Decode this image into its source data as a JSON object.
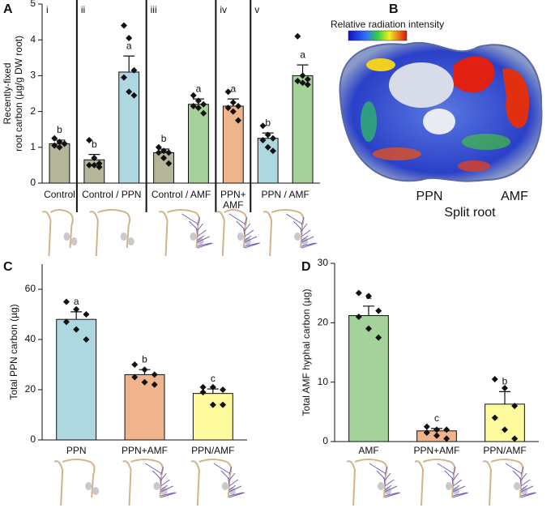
{
  "chart_data": [
    {
      "type": "bar",
      "panel": "A",
      "ylabel": [
        "Recently-fixed",
        "root carbon (µg/g DW root)"
      ],
      "ylim": [
        0,
        5
      ],
      "yticks": [
        0,
        1,
        2,
        3,
        4,
        5
      ],
      "group_dividers": true,
      "groups": [
        {
          "numeral": "i",
          "label": "Control",
          "values": [
            1.1
          ],
          "errors": [
            0.1
          ],
          "colors": [
            "#b5b699"
          ],
          "letters": [
            "b"
          ],
          "points": [
            [
              1.25,
              1.15,
              1.1,
              1.05,
              1.0,
              1.1
            ]
          ]
        },
        {
          "numeral": "ii",
          "label": "Control / PPN",
          "values": [
            0.65,
            3.1
          ],
          "errors": [
            0.15,
            0.45
          ],
          "colors": [
            "#b5b699",
            "#add8e0"
          ],
          "letters": [
            "b",
            "a"
          ],
          "points": [
            [
              1.2,
              0.7,
              0.55,
              0.5,
              0.5,
              0.45
            ],
            [
              4.4,
              4.05,
              3.15,
              2.95,
              2.55,
              2.45
            ]
          ]
        },
        {
          "numeral": "iii",
          "label": "Control / AMF",
          "values": [
            0.85,
            2.2
          ],
          "errors": [
            0.1,
            0.15
          ],
          "colors": [
            "#b5b699",
            "#a5d19a"
          ],
          "letters": [
            "b",
            "a"
          ],
          "points": [
            [
              1.0,
              0.9,
              0.85,
              0.85,
              0.7,
              0.55
            ],
            [
              2.45,
              2.3,
              2.2,
              2.15,
              2.1,
              1.95
            ]
          ]
        },
        {
          "numeral": "iv",
          "label": "PPN+ AMF",
          "values": [
            2.15
          ],
          "errors": [
            0.2
          ],
          "colors": [
            "#f0b48c"
          ],
          "letters": [
            "a"
          ],
          "points": [
            [
              2.55,
              2.25,
              2.15,
              2.1,
              2.0,
              1.75
            ]
          ]
        },
        {
          "numeral": "v",
          "label": "PPN / AMF",
          "values": [
            1.25,
            3.0
          ],
          "errors": [
            0.15,
            0.3
          ],
          "colors": [
            "#add8e0",
            "#a5d19a"
          ],
          "letters": [
            "b",
            "a"
          ],
          "points": [
            [
              1.6,
              1.35,
              1.25,
              1.2,
              1.0,
              0.9
            ],
            [
              4.1,
              3.0,
              2.9,
              2.85,
              2.8,
              2.75
            ]
          ]
        }
      ]
    },
    {
      "type": "bar",
      "panel": "C",
      "ylabel": [
        "Total PPN carbon (µg)"
      ],
      "ylim": [
        0,
        70
      ],
      "yticks": [
        0,
        20,
        40,
        60
      ],
      "group_dividers": false,
      "groups": [
        {
          "label": "PPN",
          "values": [
            48
          ],
          "errors": [
            3
          ],
          "colors": [
            "#add8e0"
          ],
          "letters": [
            "a"
          ],
          "points": [
            [
              55,
              52,
              50,
              47,
              44,
              40
            ]
          ]
        },
        {
          "label": "PPN+AMF",
          "values": [
            26
          ],
          "errors": [
            2
          ],
          "colors": [
            "#f0b48c"
          ],
          "letters": [
            "b"
          ],
          "points": [
            [
              30,
              28,
              26,
              25,
              23,
              22
            ]
          ]
        },
        {
          "label": "PPN/AMF",
          "values": [
            18.5
          ],
          "errors": [
            1.8
          ],
          "colors": [
            "#fdfb9e"
          ],
          "letters": [
            "c"
          ],
          "points": [
            [
              21,
              21,
              20,
              19,
              14,
              14
            ]
          ]
        }
      ]
    },
    {
      "type": "bar",
      "panel": "D",
      "ylabel": [
        "Total AMF hyphal carbon (µg)"
      ],
      "ylim": [
        0,
        30
      ],
      "yticks": [
        0,
        10,
        20,
        30
      ],
      "group_dividers": false,
      "groups": [
        {
          "label": "AMF",
          "values": [
            21.2
          ],
          "errors": [
            1.6
          ],
          "colors": [
            "#a5d19a"
          ],
          "letters": [
            "a"
          ],
          "points": [
            [
              25,
              24.5,
              22,
              21,
              19,
              17.5
            ]
          ]
        },
        {
          "label": "PPN+AMF",
          "values": [
            1.8
          ],
          "errors": [
            0.4
          ],
          "colors": [
            "#f0b48c"
          ],
          "letters": [
            "c"
          ],
          "points": [
            [
              2.5,
              2,
              2,
              1.5,
              1,
              0.5
            ]
          ]
        },
        {
          "label": "PPN/AMF",
          "values": [
            6.3
          ],
          "errors": [
            2.1
          ],
          "colors": [
            "#fdfb9e"
          ],
          "letters": [
            "b"
          ],
          "points": [
            [
              10.5,
              9,
              6,
              4,
              2,
              0.5
            ]
          ]
        }
      ]
    }
  ],
  "image_panel": {
    "label": "B",
    "colorbar_label": "Relative radiation intensity",
    "left_label": "PPN",
    "right_label": "AMF",
    "caption": "Split root"
  }
}
